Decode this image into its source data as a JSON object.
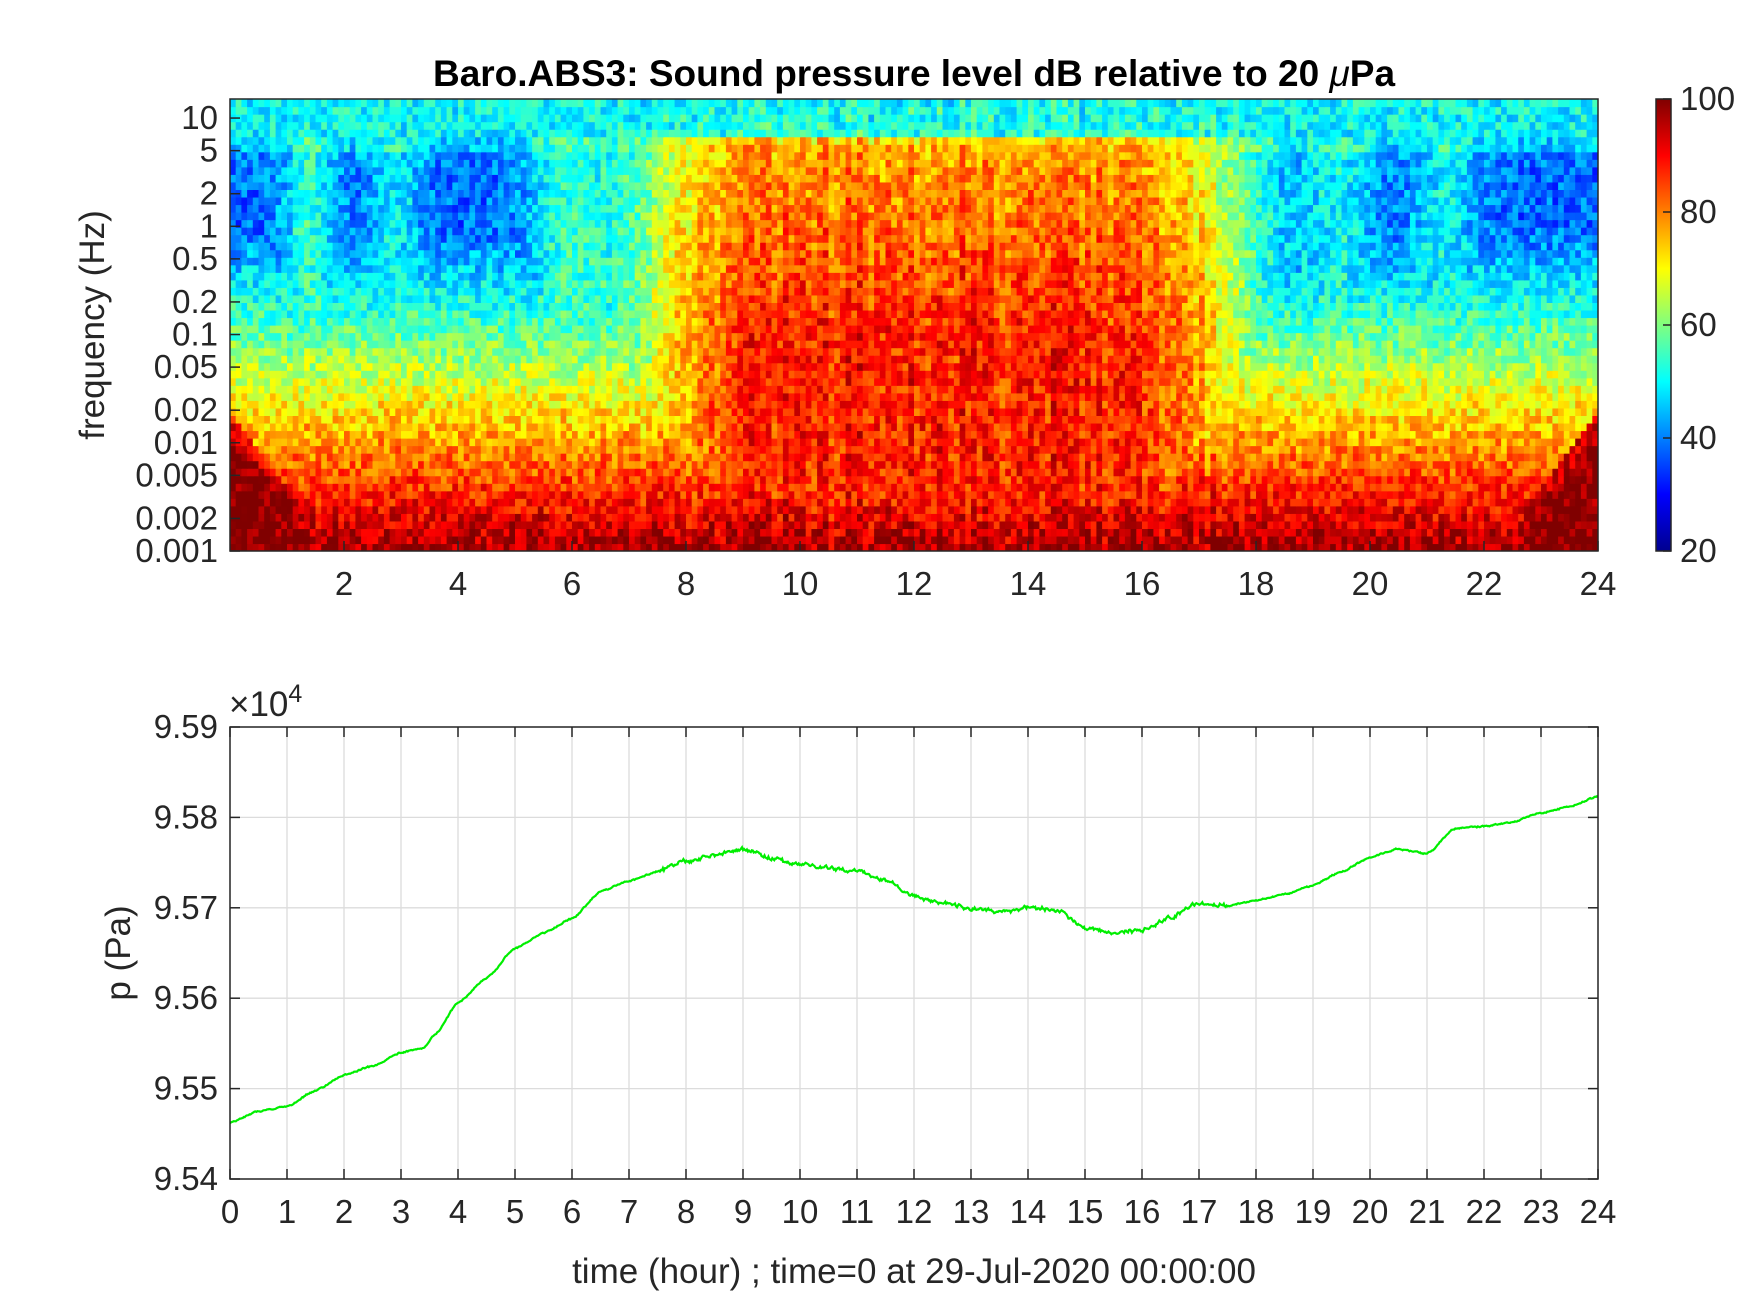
{
  "chart_data": [
    {
      "type": "heatmap",
      "title_prefix": "Baro.ABS3: Sound pressure level dB relative to 20 ",
      "title_mu": "μ",
      "title_suffix": "Pa",
      "ylabel": "frequency (Hz)",
      "xlabel": "",
      "x_ticks": [
        "2",
        "4",
        "6",
        "8",
        "10",
        "12",
        "14",
        "16",
        "18",
        "20",
        "22",
        "24"
      ],
      "x_range": [
        0,
        24
      ],
      "y_ticks": [
        "10",
        "5",
        "2",
        "1",
        "0.5",
        "0.2",
        "0.1",
        "0.05",
        "0.02",
        "0.01",
        "0.005",
        "0.002",
        "0.001"
      ],
      "y_scale": "log",
      "y_range_hz": [
        0.001,
        15
      ],
      "colormap": "jet",
      "colorbar_ticks": [
        "100",
        "80",
        "60",
        "40",
        "20"
      ],
      "colorbar_range": [
        20,
        100
      ],
      "description": "Level is highest (80-100 dB) below 0.01 Hz all day, with an intense broadband band (70-95 dB up to several Hz) between 7 and 18 h; night hours show 30-45 dB above 0.1 Hz; top frequency rows near 10 Hz stay about 50 dB."
    },
    {
      "type": "line",
      "ylabel": "p (Pa)",
      "xlabel": "time (hour) ; time=0 at 29-Jul-2020 00:00:00",
      "exponent_base": "×10",
      "exponent_power": "4",
      "x_ticks": [
        "0",
        "1",
        "2",
        "3",
        "4",
        "5",
        "6",
        "7",
        "8",
        "9",
        "10",
        "11",
        "12",
        "13",
        "14",
        "15",
        "16",
        "17",
        "18",
        "19",
        "20",
        "21",
        "22",
        "23",
        "24"
      ],
      "y_ticks": [
        "9.59",
        "9.58",
        "9.57",
        "9.56",
        "9.55",
        "9.54"
      ],
      "xlim": [
        0,
        24
      ],
      "ylim": [
        95400,
        95900
      ],
      "grid": true,
      "line_color": "#00ee00",
      "series": [
        {
          "x": [
            0,
            0.5,
            1,
            1.5,
            2,
            2.5,
            3,
            3.4,
            3.6,
            4,
            4.5,
            5,
            5.5,
            6,
            6.5,
            7,
            7.5,
            8,
            8.5,
            9,
            9.5,
            10,
            10.5,
            11,
            11.5,
            12,
            12.5,
            13,
            13.5,
            14,
            14.5,
            15,
            15.5,
            16,
            16.5,
            17,
            17.5,
            18,
            18.5,
            19,
            19.5,
            20,
            20.5,
            21,
            21.5,
            22,
            22.5,
            23,
            23.5,
            24
          ],
          "y": [
            95462,
            95475,
            95480,
            95498,
            95515,
            95525,
            95540,
            95545,
            95560,
            95595,
            95622,
            95655,
            95672,
            95688,
            95718,
            95730,
            95740,
            95752,
            95758,
            95765,
            95755,
            95748,
            95745,
            95740,
            95730,
            95713,
            95705,
            95700,
            95695,
            95700,
            95698,
            95678,
            95673,
            95675,
            95690,
            95705,
            95702,
            95708,
            95715,
            95725,
            95740,
            95756,
            95765,
            95760,
            95788,
            95790,
            95795,
            95805,
            95812,
            95823
          ]
        }
      ]
    }
  ]
}
